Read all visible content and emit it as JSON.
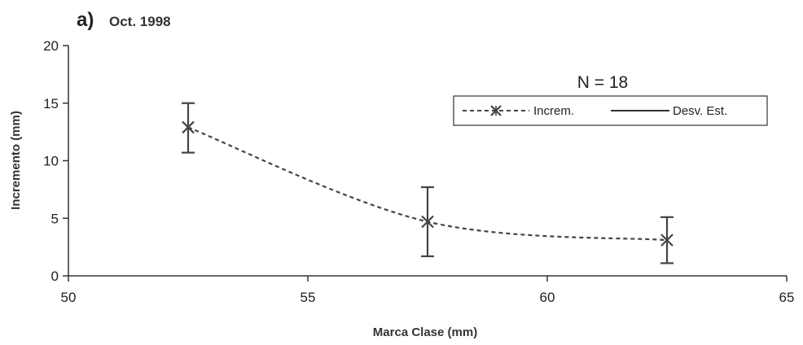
{
  "chart_data": {
    "type": "line",
    "panel_letter": "a)",
    "title": "Oct. 1998",
    "annotation": "N = 18",
    "xlabel": "Marca Clase (mm)",
    "ylabel": "Incremento (mm)",
    "xlim": [
      50,
      65
    ],
    "ylim": [
      0,
      20
    ],
    "xticks": [
      50,
      55,
      60,
      65
    ],
    "yticks": [
      0,
      5,
      10,
      15,
      20
    ],
    "grid": false,
    "legend_position": "top-right",
    "legend": [
      {
        "label": "Increm.",
        "style": "dashed-with-star-markers"
      },
      {
        "label": "Desv. Est.",
        "style": "solid"
      }
    ],
    "series": [
      {
        "name": "Increm.",
        "x": [
          52.5,
          57.5,
          62.5
        ],
        "y": [
          12.9,
          4.7,
          3.1
        ],
        "error_low": [
          10.7,
          1.7,
          1.1
        ],
        "error_high": [
          15.0,
          7.7,
          5.1
        ]
      }
    ],
    "colors": {
      "line": "#444444",
      "axis": "#333333"
    }
  }
}
